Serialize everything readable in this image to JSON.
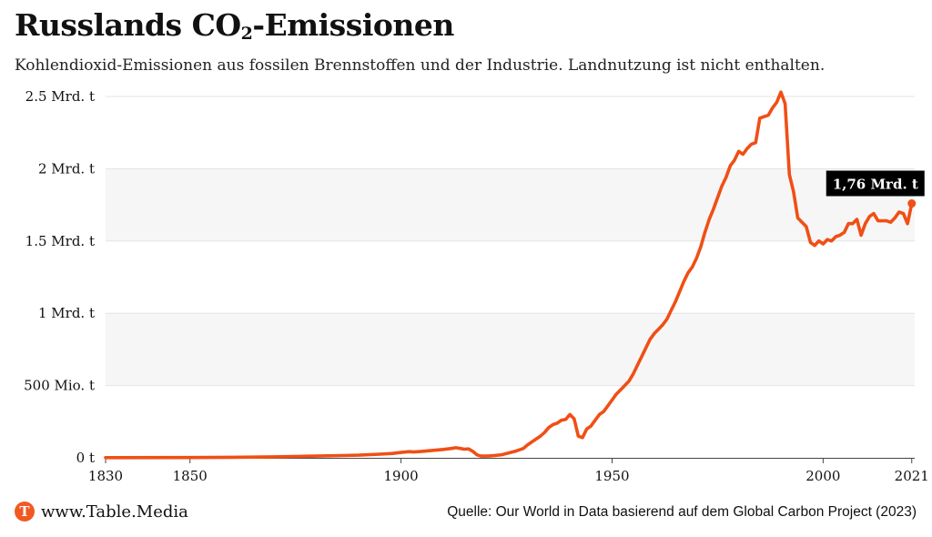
{
  "header": {
    "title_main": "Russlands CO",
    "title_sub": "2",
    "title_end": "-Emissionen",
    "subtitle": "Kohlendioxid-Emissionen aus fossilen Brennstoffen und der Industrie. Landnutzung ist nicht enthalten."
  },
  "footer": {
    "brand_letter": "T",
    "brand": "www.Table.Media",
    "source": "Quelle: Our World in Data basierend auf dem Global Carbon Project (2023)"
  },
  "colors": {
    "line": "#f04f15",
    "band": "#f6f6f6",
    "grid": "#e3e3e3",
    "label_bg": "#000000"
  },
  "chart_data": {
    "type": "line",
    "unit": "Mrd. t",
    "ylim": [
      0,
      2.5
    ],
    "xlim": [
      1830,
      2021
    ],
    "yticks": [
      {
        "value": 0,
        "label": "0 t"
      },
      {
        "value": 0.5,
        "label": "500 Mio. t"
      },
      {
        "value": 1.0,
        "label": "1 Mrd. t"
      },
      {
        "value": 1.5,
        "label": "1.5 Mrd. t"
      },
      {
        "value": 2.0,
        "label": "2 Mrd. t"
      },
      {
        "value": 2.5,
        "label": "2.5 Mrd. t"
      }
    ],
    "xticks": [
      {
        "value": 1830,
        "label": "1830"
      },
      {
        "value": 1850,
        "label": "1850"
      },
      {
        "value": 1900,
        "label": "1900"
      },
      {
        "value": 1950,
        "label": "1950"
      },
      {
        "value": 2000,
        "label": "2000"
      },
      {
        "value": 2021,
        "label": "2021"
      }
    ],
    "grid": true,
    "series": [
      {
        "x": [
          1830,
          1850,
          1860,
          1870,
          1880,
          1890,
          1895,
          1898,
          1900,
          1902,
          1903,
          1905,
          1907,
          1910,
          1912,
          1913,
          1914,
          1915,
          1916,
          1917,
          1918,
          1919,
          1920,
          1921,
          1922,
          1923,
          1924,
          1925,
          1927,
          1928,
          1929,
          1930,
          1932,
          1933,
          1934,
          1935,
          1936,
          1937,
          1938,
          1939,
          1940,
          1941,
          1942,
          1943,
          1944,
          1945,
          1946,
          1947,
          1948,
          1949,
          1950,
          1951,
          1952,
          1953,
          1954,
          1955,
          1956,
          1957,
          1958,
          1959,
          1960,
          1961,
          1962,
          1963,
          1964,
          1965,
          1966,
          1967,
          1968,
          1969,
          1970,
          1971,
          1972,
          1973,
          1974,
          1975,
          1976,
          1977,
          1978,
          1979,
          1980,
          1981,
          1982,
          1983,
          1984,
          1985,
          1986,
          1987,
          1988,
          1989,
          1990,
          1991,
          1992,
          1993,
          1994,
          1995,
          1996,
          1997,
          1998,
          1999,
          2000,
          2001,
          2002,
          2003,
          2004,
          2005,
          2006,
          2007,
          2008,
          2009,
          2010,
          2011,
          2012,
          2013,
          2014,
          2015,
          2016,
          2017,
          2018,
          2019,
          2020,
          2021
        ],
        "y": [
          0.001,
          0.002,
          0.004,
          0.007,
          0.012,
          0.018,
          0.025,
          0.03,
          0.037,
          0.043,
          0.04,
          0.045,
          0.05,
          0.058,
          0.065,
          0.07,
          0.065,
          0.06,
          0.062,
          0.045,
          0.02,
          0.012,
          0.012,
          0.013,
          0.015,
          0.018,
          0.022,
          0.03,
          0.045,
          0.055,
          0.065,
          0.09,
          0.13,
          0.15,
          0.175,
          0.21,
          0.23,
          0.24,
          0.26,
          0.265,
          0.3,
          0.27,
          0.15,
          0.14,
          0.2,
          0.22,
          0.26,
          0.3,
          0.32,
          0.36,
          0.4,
          0.44,
          0.47,
          0.5,
          0.53,
          0.58,
          0.64,
          0.7,
          0.76,
          0.82,
          0.86,
          0.89,
          0.92,
          0.96,
          1.02,
          1.08,
          1.15,
          1.22,
          1.28,
          1.32,
          1.38,
          1.46,
          1.56,
          1.65,
          1.72,
          1.8,
          1.88,
          1.94,
          2.02,
          2.06,
          2.12,
          2.1,
          2.14,
          2.17,
          2.18,
          2.35,
          2.36,
          2.37,
          2.42,
          2.46,
          2.53,
          2.45,
          1.96,
          1.84,
          1.66,
          1.63,
          1.6,
          1.49,
          1.47,
          1.5,
          1.48,
          1.51,
          1.5,
          1.53,
          1.54,
          1.56,
          1.62,
          1.62,
          1.65,
          1.54,
          1.62,
          1.67,
          1.69,
          1.64,
          1.64,
          1.64,
          1.63,
          1.66,
          1.7,
          1.69,
          1.62,
          1.76
        ]
      }
    ],
    "annotation": {
      "year": 2021,
      "value": 1.76,
      "label": "1,76 Mrd. t"
    }
  }
}
